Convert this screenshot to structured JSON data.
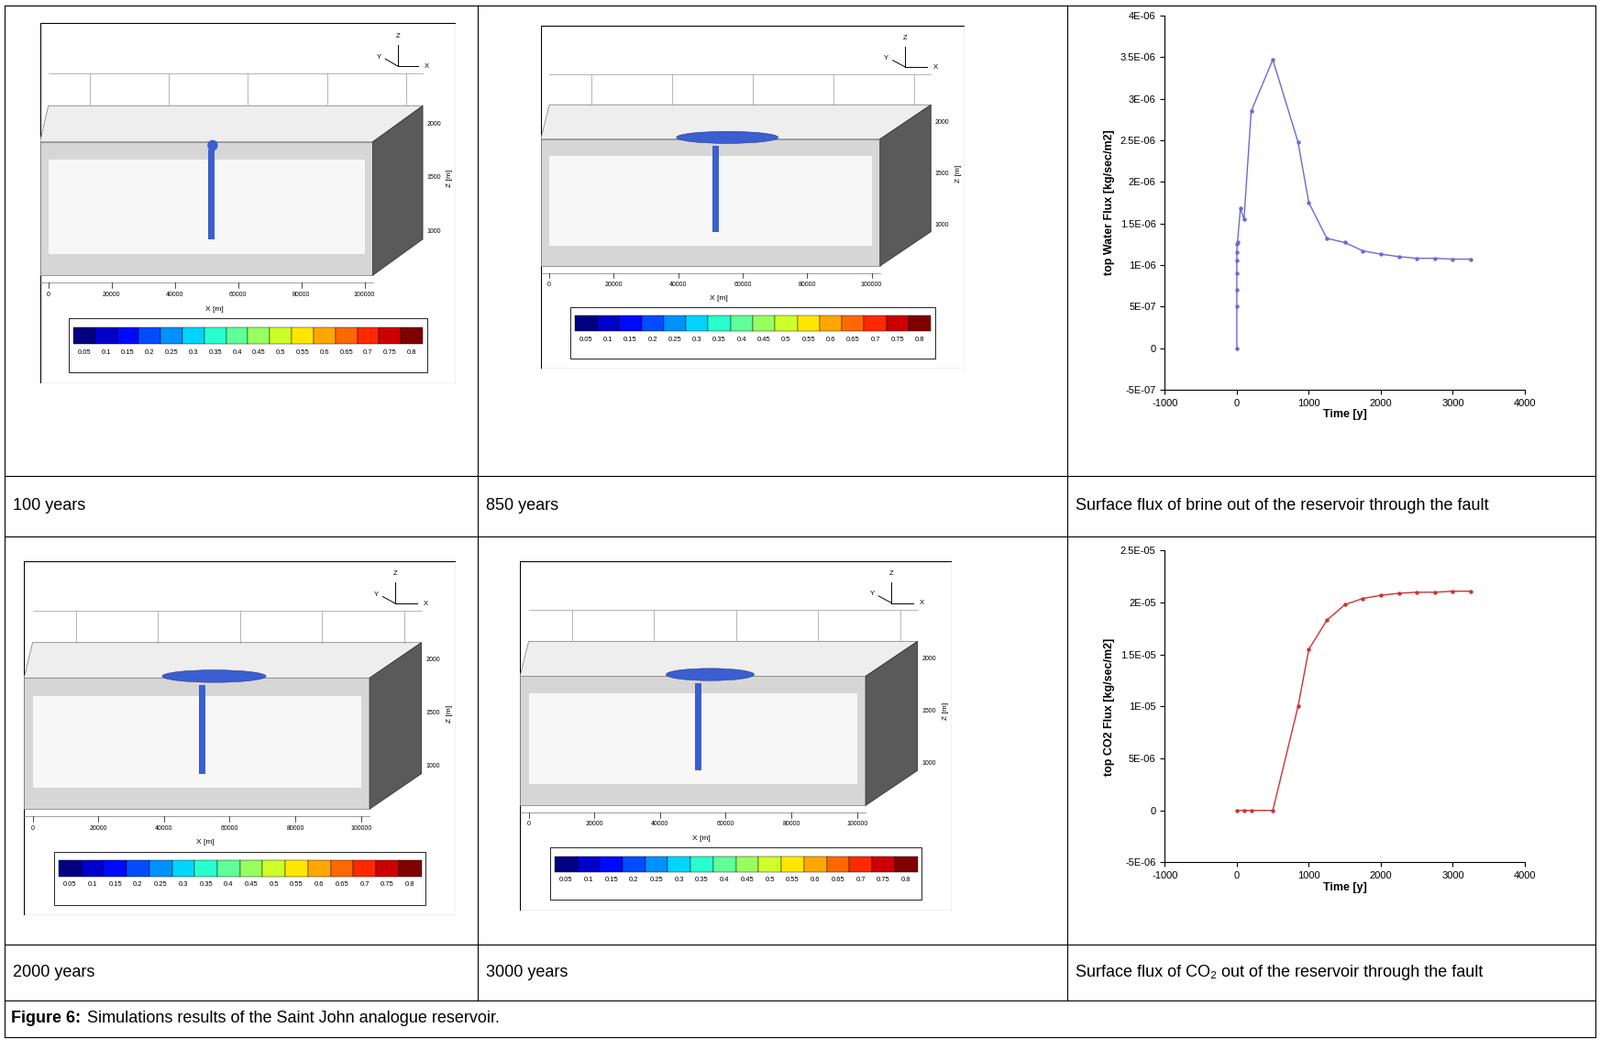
{
  "caption": {
    "label": "Figure 6:",
    "text": "Simulations results of the Saint John analogue reservoir."
  },
  "snapshot_axes": {
    "xticks": [
      0,
      20000,
      40000,
      60000,
      80000,
      100000
    ],
    "xlabel": "X [m]",
    "zticks": [
      1000,
      1500,
      2000
    ],
    "zlabel": "Z [m]",
    "triad": [
      "X",
      "Y",
      "Z"
    ],
    "colorbar_ticks": [
      0.05,
      0.1,
      0.15,
      0.2,
      0.25,
      0.3,
      0.35,
      0.4,
      0.45,
      0.5,
      0.55,
      0.6,
      0.65,
      0.7,
      0.75,
      0.8
    ]
  },
  "snapshots": [
    {
      "caption": "100 years"
    },
    {
      "caption": "850 years"
    },
    {
      "caption": "2000 years"
    },
    {
      "caption": "3000 years"
    }
  ],
  "chart_data": [
    {
      "type": "line",
      "caption": "Surface flux of brine out of the reservoir through the fault",
      "xlabel": "Time [y]",
      "ylabel": "top Water Flux [kg/sec/m2]",
      "xlim": [
        -1000,
        4000
      ],
      "xticks": [
        -1000,
        0,
        1000,
        2000,
        3000,
        4000
      ],
      "ylim": [
        -5e-07,
        4e-06
      ],
      "yticks": [
        {
          "value": -5e-07,
          "label": "-5E-07"
        },
        0,
        {
          "value": 5e-07,
          "label": "5E-07"
        },
        {
          "value": 1e-06,
          "label": "1E-06"
        },
        {
          "value": 1.5e-06,
          "label": "1.5E-06"
        },
        {
          "value": 2e-06,
          "label": "2E-06"
        },
        {
          "value": 2.5e-06,
          "label": "2.5E-06"
        },
        {
          "value": 3e-06,
          "label": "3E-06"
        },
        {
          "value": 3.5e-06,
          "label": "3.5E-06"
        },
        {
          "value": 4e-06,
          "label": "4E-06"
        }
      ],
      "series": [
        {
          "name": "top Water Flux",
          "color": "#6a6ad0",
          "marker": "o",
          "line_style": "solid",
          "x": [
            0,
            0,
            0,
            0,
            0,
            0,
            5,
            10,
            50,
            100,
            200,
            500,
            850,
            1000,
            1250,
            1500,
            1750,
            2000,
            2250,
            2500,
            2750,
            3000,
            3250
          ],
          "values": [
            0,
            5e-07,
            7e-07,
            9e-07,
            1.05e-06,
            1.15e-06,
            1.25e-06,
            1.28e-06,
            1.68e-06,
            1.55e-06,
            2.85e-06,
            3.47e-06,
            2.48e-06,
            1.75e-06,
            1.32e-06,
            1.27e-06,
            1.17e-06,
            1.13e-06,
            1.1e-06,
            1.08e-06,
            1.08e-06,
            1.07e-06,
            1.07e-06
          ]
        }
      ]
    },
    {
      "type": "line",
      "caption": "Surface flux of CO₂ out of the reservoir through the fault",
      "xlabel": "Time [y]",
      "ylabel": "top CO2 Flux [kg/sec/m2]",
      "xlim": [
        -1000,
        4000
      ],
      "xticks": [
        -1000,
        0,
        1000,
        2000,
        3000,
        4000
      ],
      "ylim": [
        -5e-06,
        2.5e-05
      ],
      "yticks": [
        {
          "value": -5e-06,
          "label": "-5E-06"
        },
        0,
        {
          "value": 5e-06,
          "label": "5E-06"
        },
        {
          "value": 1e-05,
          "label": "1E-05"
        },
        {
          "value": 1.5e-05,
          "label": "1.5E-05"
        },
        {
          "value": 2e-05,
          "label": "2E-05"
        },
        {
          "value": 2.5e-05,
          "label": "2.5E-05"
        }
      ],
      "series": [
        {
          "name": "top CO2 Flux",
          "color": "#cc3333",
          "marker": "o",
          "line_style": "solid",
          "x": [
            0,
            100,
            200,
            500,
            850,
            1000,
            1250,
            1500,
            1750,
            2000,
            2250,
            2500,
            2750,
            3000,
            3250
          ],
          "values": [
            0,
            0,
            0,
            0,
            1e-05,
            1.55e-05,
            1.83e-05,
            1.98e-05,
            2.04e-05,
            2.07e-05,
            2.09e-05,
            2.1e-05,
            2.1e-05,
            2.11e-05,
            2.11e-05
          ]
        }
      ]
    }
  ]
}
